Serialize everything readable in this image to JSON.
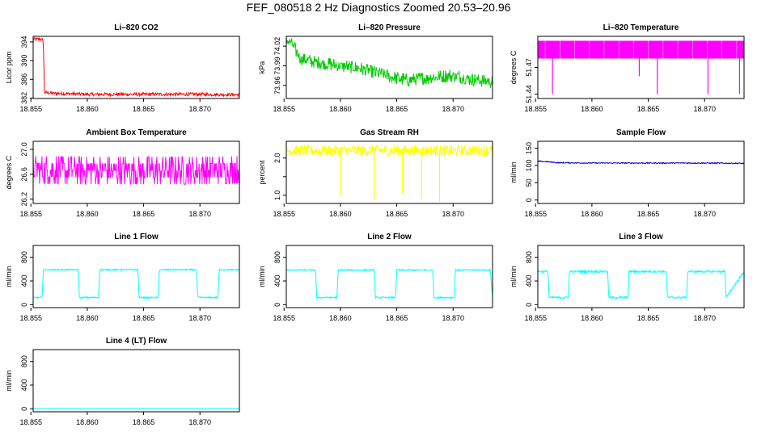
{
  "figure": {
    "title": "FEF_080518  2 Hz Diagnostics Zoomed 20.53–20.96"
  },
  "colors": {
    "red": "#ff0000",
    "green": "#00cc00",
    "magenta": "#ff00ff",
    "yellow": "#ffff00",
    "blue": "#0000cc",
    "cyan": "#00ffff",
    "axis": "#000000"
  },
  "chart_data": [
    {
      "type": "line",
      "title": "Li–820 CO2",
      "ylabel": "Licor ppm",
      "color_key": "red",
      "xlim": [
        18.8552,
        18.8735
      ],
      "ylim": [
        381.9,
        395.2
      ],
      "xticks": [
        18.855,
        18.86,
        18.865,
        18.87
      ],
      "xtick_labels": [
        "18.855",
        "18.860",
        "18.865",
        "18.870"
      ],
      "yticks": [
        382,
        386,
        390,
        394
      ],
      "ytick_labels": [
        "382",
        "386",
        "390",
        "394"
      ],
      "series": [
        {
          "name": "CO2",
          "x": [
            18.8552,
            18.8558,
            18.8561,
            18.8562,
            18.857,
            18.86,
            18.865,
            18.87,
            18.8735
          ],
          "y": [
            394.6,
            394.6,
            394.4,
            383.2,
            383.0,
            382.8,
            382.8,
            382.8,
            382.7
          ],
          "noise": 0.35,
          "step": false
        }
      ]
    },
    {
      "type": "line",
      "title": "Li–820 Pressure",
      "ylabel": "kPa",
      "color_key": "green",
      "xlim": [
        18.8552,
        18.8735
      ],
      "ylim": [
        73.94,
        74.035
      ],
      "xticks": [
        18.855,
        18.86,
        18.865,
        18.87
      ],
      "xtick_labels": [
        "18.855",
        "18.860",
        "18.865",
        "18.870"
      ],
      "yticks": [
        73.96,
        73.99,
        74.02
      ],
      "ytick_labels": [
        "73.96",
        "73.99",
        "74.02"
      ],
      "series": [
        {
          "name": "Pressure",
          "x": [
            18.8552,
            18.8556,
            18.856,
            18.8565,
            18.858,
            18.86,
            18.862,
            18.864,
            18.866,
            18.868,
            18.87,
            18.872,
            18.8735
          ],
          "y": [
            74.03,
            74.025,
            74.015,
            74.0,
            73.995,
            73.99,
            73.985,
            73.975,
            73.968,
            73.972,
            73.975,
            73.968,
            73.965
          ],
          "noise": 0.009,
          "step": true
        }
      ]
    },
    {
      "type": "line",
      "title": "Li–820 Temperature",
      "ylabel": "degrees C",
      "color_key": "magenta",
      "xlim": [
        18.8552,
        18.8735
      ],
      "ylim": [
        51.435,
        51.505
      ],
      "xticks": [
        18.855,
        18.86,
        18.865,
        18.87
      ],
      "xtick_labels": [
        "18.855",
        "18.860",
        "18.865",
        "18.870"
      ],
      "yticks": [
        51.44,
        51.47
      ],
      "ytick_labels": [
        "51.44",
        "51.47"
      ],
      "series": [
        {
          "name": "Temperature",
          "x": [
            18.8552,
            18.8735
          ],
          "y": [
            51.5,
            51.5
          ],
          "noise": 0,
          "step": false,
          "band": [
            51.48,
            51.5
          ],
          "dips_x": [
            18.8565,
            18.8642,
            18.8658,
            18.8703,
            18.8731
          ],
          "dips_y": [
            51.44,
            51.46,
            51.44,
            51.44,
            51.44
          ]
        }
      ]
    },
    {
      "type": "line",
      "title": "Ambient Box Temperature",
      "ylabel": "degrees C",
      "color_key": "magenta",
      "xlim": [
        18.8552,
        18.8735
      ],
      "ylim": [
        26.13,
        27.13
      ],
      "xticks": [
        18.855,
        18.86,
        18.865,
        18.87
      ],
      "xtick_labels": [
        "18.855",
        "18.860",
        "18.865",
        "18.870"
      ],
      "yticks": [
        26.2,
        26.6,
        27.0
      ],
      "ytick_labels": [
        "26.2",
        "26.6",
        "27.0"
      ],
      "series": [
        {
          "name": "Ambient",
          "x": [
            18.8552,
            18.86,
            18.865,
            18.87,
            18.8735
          ],
          "y": [
            26.67,
            26.66,
            26.66,
            26.66,
            26.67
          ],
          "noise": 0.22,
          "step": true
        }
      ]
    },
    {
      "type": "line",
      "title": "Gas Stream RH",
      "ylabel": "percent",
      "color_key": "yellow",
      "xlim": [
        18.8552,
        18.8735
      ],
      "ylim": [
        0.78,
        2.45
      ],
      "xticks": [
        18.855,
        18.86,
        18.865,
        18.87
      ],
      "xtick_labels": [
        "18.855",
        "18.860",
        "18.865",
        "18.870"
      ],
      "yticks": [
        1.0,
        1.5,
        2.0
      ],
      "ytick_labels": [
        "1.0",
        "",
        "2.0"
      ],
      "series": [
        {
          "name": "RH",
          "x": [
            18.8552,
            18.86,
            18.865,
            18.87,
            18.8735
          ],
          "y": [
            2.2,
            2.2,
            2.2,
            2.2,
            2.2
          ],
          "noise": 0.15,
          "step": false,
          "dips_x": [
            18.86,
            18.863,
            18.8655,
            18.8672,
            18.8688
          ],
          "dips_y": [
            1.0,
            0.88,
            1.05,
            0.92,
            0.82
          ]
        }
      ]
    },
    {
      "type": "line",
      "title": "Sample Flow",
      "ylabel": "ml/min",
      "color_key": "blue",
      "xlim": [
        18.8552,
        18.8735
      ],
      "ylim": [
        -10,
        170
      ],
      "xticks": [
        18.855,
        18.86,
        18.865,
        18.87
      ],
      "xtick_labels": [
        "18.855",
        "18.860",
        "18.865",
        "18.870"
      ],
      "yticks": [
        0,
        50,
        100,
        150
      ],
      "ytick_labels": [
        "0",
        "50",
        "100",
        "150"
      ],
      "series": [
        {
          "name": "Sample",
          "x": [
            18.8552,
            18.856,
            18.857,
            18.86,
            18.865,
            18.87,
            18.8735
          ],
          "y": [
            112,
            111,
            108,
            107,
            107,
            107,
            106
          ],
          "noise": 1.5,
          "step": false
        }
      ]
    },
    {
      "type": "line",
      "title": "Line 1 Flow",
      "ylabel": "ml/min",
      "color_key": "cyan",
      "xlim": [
        18.8552,
        18.8735
      ],
      "ylim": [
        -50,
        1000
      ],
      "xticks": [
        18.855,
        18.86,
        18.865,
        18.87
      ],
      "xtick_labels": [
        "18.855",
        "18.860",
        "18.865",
        "18.870"
      ],
      "yticks": [
        0,
        400,
        800
      ],
      "ytick_labels": [
        "0",
        "400",
        "800"
      ],
      "series": [
        {
          "name": "Line1",
          "x": [
            18.8552,
            18.856,
            18.8561,
            18.8592,
            18.8593,
            18.861,
            18.8611,
            18.8645,
            18.8646,
            18.8663,
            18.8664,
            18.8697,
            18.8698,
            18.8716,
            18.8717,
            18.8735
          ],
          "y": [
            120,
            120,
            590,
            590,
            120,
            120,
            590,
            590,
            120,
            120,
            590,
            590,
            120,
            120,
            590,
            590
          ],
          "noise": 12,
          "step": false
        }
      ]
    },
    {
      "type": "line",
      "title": "Line 2 Flow",
      "ylabel": "ml/min",
      "color_key": "cyan",
      "xlim": [
        18.8552,
        18.8735
      ],
      "ylim": [
        -50,
        1000
      ],
      "xticks": [
        18.855,
        18.86,
        18.865,
        18.87
      ],
      "xtick_labels": [
        "18.855",
        "18.860",
        "18.865",
        "18.870"
      ],
      "yticks": [
        0,
        400,
        800
      ],
      "ytick_labels": [
        "0",
        "400",
        "800"
      ],
      "series": [
        {
          "name": "Line2",
          "x": [
            18.8552,
            18.8578,
            18.8579,
            18.8597,
            18.8598,
            18.863,
            18.8631,
            18.8649,
            18.865,
            18.8682,
            18.8683,
            18.8701,
            18.8702,
            18.8733,
            18.8735
          ],
          "y": [
            585,
            585,
            120,
            120,
            585,
            585,
            120,
            120,
            585,
            585,
            120,
            120,
            585,
            585,
            120
          ],
          "noise": 12,
          "step": false
        }
      ]
    },
    {
      "type": "line",
      "title": "Line 3 Flow",
      "ylabel": "ml/min",
      "color_key": "cyan",
      "xlim": [
        18.8552,
        18.8735
      ],
      "ylim": [
        -50,
        1000
      ],
      "xticks": [
        18.855,
        18.86,
        18.865,
        18.87
      ],
      "xtick_labels": [
        "18.855",
        "18.860",
        "18.865",
        "18.870"
      ],
      "yticks": [
        0,
        400,
        800
      ],
      "ytick_labels": [
        "0",
        "400",
        "800"
      ],
      "series": [
        {
          "name": "Line3",
          "x": [
            18.8552,
            18.8561,
            18.8562,
            18.8579,
            18.858,
            18.8614,
            18.8615,
            18.8632,
            18.8633,
            18.8666,
            18.8667,
            18.8684,
            18.8685,
            18.8718,
            18.8719,
            18.8735
          ],
          "y": [
            560,
            560,
            120,
            120,
            560,
            560,
            120,
            120,
            560,
            560,
            120,
            120,
            560,
            560,
            120,
            560
          ],
          "noise": 18,
          "step": false
        }
      ]
    },
    {
      "type": "line",
      "title": "Line 4 (LT) Flow",
      "ylabel": "ml/min",
      "color_key": "cyan",
      "xlim": [
        18.8552,
        18.8735
      ],
      "ylim": [
        -50,
        1000
      ],
      "xticks": [
        18.855,
        18.86,
        18.865,
        18.87
      ],
      "xtick_labels": [
        "18.855",
        "18.860",
        "18.865",
        "18.870"
      ],
      "yticks": [
        0,
        400,
        800
      ],
      "ytick_labels": [
        "0",
        "400",
        "800"
      ],
      "series": [
        {
          "name": "Line4",
          "x": [
            18.8552,
            18.8735
          ],
          "y": [
            5,
            5
          ],
          "noise": 0,
          "step": false
        }
      ]
    }
  ]
}
